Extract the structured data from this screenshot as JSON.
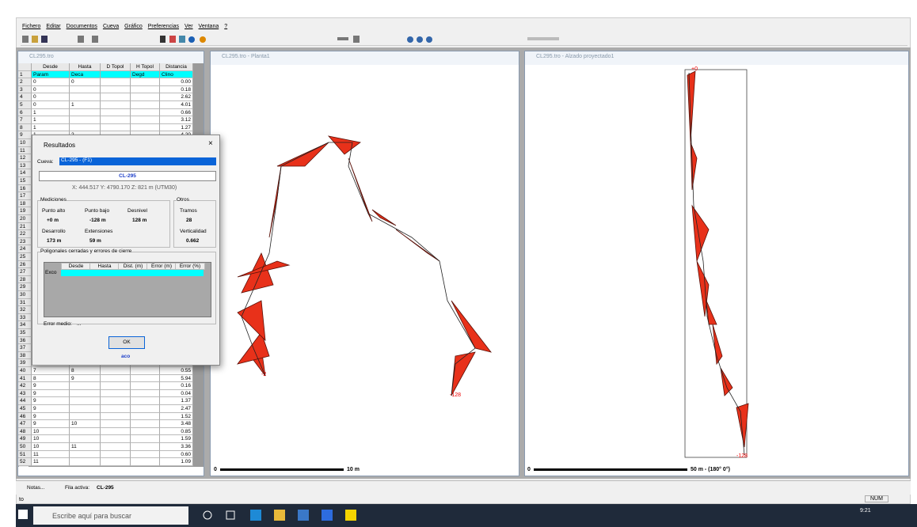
{
  "app": {
    "menu": [
      "Fichero",
      "Editar",
      "Documentos",
      "Cueva",
      "Gráfico",
      "Preferencias",
      "Ver",
      "Ventana",
      "?"
    ]
  },
  "table_window": {
    "title": "CL295.tro",
    "headers": [
      "Desde",
      "Hasta",
      "D Topol",
      "H Topol",
      "Distancia"
    ],
    "rows": [
      {
        "n": "1",
        "desde": "Param",
        "hasta": "Deca",
        "htopo": "Degd",
        "dist": "Clino"
      },
      {
        "n": "2",
        "desde": "0",
        "hasta": "0",
        "dist": "0.00"
      },
      {
        "n": "3",
        "desde": "0",
        "dist": "0.18"
      },
      {
        "n": "4",
        "desde": "0",
        "dist": "2.62"
      },
      {
        "n": "5",
        "desde": "0",
        "hasta": "1",
        "dist": "4.01"
      },
      {
        "n": "6",
        "desde": "1",
        "dist": "0.66"
      },
      {
        "n": "7",
        "desde": "1",
        "dist": "3.12"
      },
      {
        "n": "8",
        "desde": "1",
        "dist": "1.27"
      },
      {
        "n": "9",
        "desde": "1",
        "hasta": "2",
        "dist": "4.20"
      },
      {
        "n": "10"
      },
      {
        "n": "11"
      },
      {
        "n": "12"
      },
      {
        "n": "13"
      },
      {
        "n": "14"
      },
      {
        "n": "15"
      },
      {
        "n": "16"
      },
      {
        "n": "17"
      },
      {
        "n": "18"
      },
      {
        "n": "19"
      },
      {
        "n": "20"
      },
      {
        "n": "21"
      },
      {
        "n": "22"
      },
      {
        "n": "23"
      },
      {
        "n": "24"
      },
      {
        "n": "25"
      },
      {
        "n": "26"
      },
      {
        "n": "27"
      },
      {
        "n": "28"
      },
      {
        "n": "29"
      },
      {
        "n": "30"
      },
      {
        "n": "31"
      },
      {
        "n": "32"
      },
      {
        "n": "33"
      },
      {
        "n": "34"
      },
      {
        "n": "35"
      },
      {
        "n": "36"
      },
      {
        "n": "37"
      },
      {
        "n": "38"
      },
      {
        "n": "39"
      },
      {
        "n": "40",
        "desde": "7",
        "hasta": "8",
        "dist": "0.55"
      },
      {
        "n": "41",
        "desde": "8",
        "hasta": "9",
        "dist": "5.94"
      },
      {
        "n": "42",
        "desde": "9",
        "dist": "0.16"
      },
      {
        "n": "43",
        "desde": "9",
        "dist": "0.04"
      },
      {
        "n": "44",
        "desde": "9",
        "dist": "1.37"
      },
      {
        "n": "45",
        "desde": "9",
        "dist": "2.47"
      },
      {
        "n": "46",
        "desde": "9",
        "dist": "1.52"
      },
      {
        "n": "47",
        "desde": "9",
        "hasta": "10",
        "dist": "3.48"
      },
      {
        "n": "48",
        "desde": "10",
        "dist": "0.85"
      },
      {
        "n": "49",
        "desde": "10",
        "dist": "1.59"
      },
      {
        "n": "50",
        "desde": "10",
        "hasta": "11",
        "dist": "3.36"
      },
      {
        "n": "51",
        "desde": "11",
        "dist": "0.60"
      },
      {
        "n": "52",
        "desde": "11",
        "dist": "1.09"
      }
    ]
  },
  "plan_window": {
    "title": "CL295.tro - Planta1",
    "start_label": "-2",
    "end_label": "-128",
    "scale_zero": "0",
    "scale_label": "10 m"
  },
  "elevation_window": {
    "title": "CL295.tro - Alzado proyectado1",
    "top_label": "+0",
    "end_label": "-128",
    "scale_zero": "0",
    "scale_label": "50 m - (180° 0°)"
  },
  "dialog": {
    "title": "Resultados",
    "cave_label": "Cueva:",
    "cave_select": "CL-295 - (F1)",
    "cave_name": "CL-295",
    "coords": "X: 444.517 Y: 4790.170 Z: 821 m (UTM30)",
    "measures_title": "Mediciones",
    "others_title": "Otros",
    "measures": [
      {
        "label": "Punto alto",
        "value": "+0 m"
      },
      {
        "label": "Punto bajo",
        "value": "-128 m"
      },
      {
        "label": "Desnivel",
        "value": "128 m"
      },
      {
        "label": "Desarrollo",
        "value": "173 m"
      },
      {
        "label": "Extensiones",
        "value": "59 m"
      }
    ],
    "others": [
      {
        "label": "Tramos",
        "value": "28"
      },
      {
        "label": "Verticalidad",
        "value": "0.662"
      }
    ],
    "loops_title": "Poligonales cerradas y errores de cierre",
    "loops_headers": [
      "Desde",
      "Hasta",
      "Dist. (m)",
      "Error (m)",
      "Error (%)"
    ],
    "loops_row": "Exco",
    "mean_error_label": "Error medio:",
    "mean_error_value": "...",
    "ok": "OK",
    "footer": "aco"
  },
  "status": {
    "notes": "Notas...",
    "active_row_label": "Fila activa:",
    "active_row": "CL-295",
    "left": "to",
    "num": "NUM"
  },
  "taskbar": {
    "search": "Escribe aquí para buscar",
    "time": "9:21"
  }
}
